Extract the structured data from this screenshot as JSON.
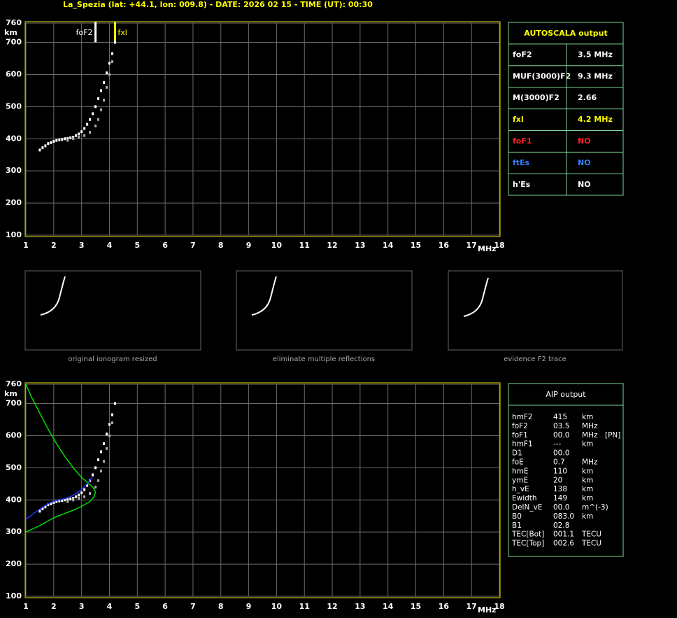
{
  "header": {
    "title": "La_Spezia (lat: +44.1, lon: 009.8) - DATE: 2026 02 15 - TIME (UT): 00:30"
  },
  "chart_data": [
    {
      "type": "scatter",
      "xlabel": "MHz",
      "ylabel": "km",
      "xlim": [
        1,
        18
      ],
      "ylim": [
        100,
        760
      ],
      "xticks": [
        1,
        2,
        3,
        4,
        5,
        6,
        7,
        8,
        9,
        10,
        11,
        12,
        13,
        14,
        15,
        16,
        17,
        18
      ],
      "yticks": [
        100,
        200,
        300,
        400,
        500,
        600,
        700,
        760
      ],
      "grid": true,
      "annotations": [
        {
          "text": "foF2",
          "x": 3.5,
          "color": "#ffffff"
        },
        {
          "text": "fxl",
          "x": 4.2,
          "color": "#ffff00"
        }
      ],
      "series": [
        {
          "type": "scatter",
          "color": "#ffffff",
          "x": [
            1.5,
            1.6,
            1.7,
            1.8,
            1.9,
            2.0,
            2.1,
            2.2,
            2.3,
            2.4,
            2.5,
            2.6,
            2.7,
            2.8,
            2.9,
            3.0,
            3.1,
            3.2,
            3.3,
            3.4,
            3.5,
            3.6,
            3.7,
            3.8,
            3.9,
            4.0,
            4.1,
            4.2
          ],
          "values": [
            365,
            372,
            378,
            385,
            388,
            392,
            395,
            397,
            398,
            400,
            401,
            403,
            405,
            410,
            415,
            422,
            432,
            445,
            460,
            478,
            500,
            525,
            550,
            575,
            605,
            635,
            665,
            700
          ]
        },
        {
          "type": "scatter",
          "color": "#aaaaaa",
          "x": [
            2.5,
            2.7,
            2.9,
            3.1,
            3.3,
            3.5,
            3.6,
            3.7,
            3.8,
            3.9,
            4.0,
            4.1
          ],
          "values": [
            395,
            400,
            405,
            410,
            420,
            440,
            460,
            490,
            520,
            560,
            600,
            640
          ]
        }
      ]
    },
    {
      "type": "scatter",
      "xlabel": "MHz",
      "ylabel": "km",
      "xlim": [
        1,
        18
      ],
      "ylim": [
        100,
        760
      ],
      "xticks": [
        1,
        2,
        3,
        4,
        5,
        6,
        7,
        8,
        9,
        10,
        11,
        12,
        13,
        14,
        15,
        16,
        17,
        18
      ],
      "yticks": [
        100,
        200,
        300,
        400,
        500,
        600,
        700,
        760
      ],
      "grid": true,
      "series": [
        {
          "type": "scatter",
          "color": "#ffffff",
          "x": [
            1.5,
            1.6,
            1.7,
            1.8,
            1.9,
            2.0,
            2.1,
            2.2,
            2.3,
            2.4,
            2.5,
            2.6,
            2.7,
            2.8,
            2.9,
            3.0,
            3.1,
            3.2,
            3.3,
            3.4,
            3.5,
            3.6,
            3.7,
            3.8,
            3.9,
            4.0,
            4.1,
            4.2
          ],
          "values": [
            365,
            372,
            378,
            385,
            388,
            392,
            395,
            397,
            398,
            400,
            401,
            403,
            405,
            410,
            415,
            422,
            432,
            445,
            460,
            478,
            500,
            525,
            550,
            575,
            605,
            635,
            665,
            700
          ]
        },
        {
          "type": "scatter",
          "color": "#aaaaaa",
          "x": [
            2.5,
            2.7,
            2.9,
            3.1,
            3.3,
            3.5,
            3.6,
            3.7,
            3.8,
            3.9,
            4.0,
            4.1
          ],
          "values": [
            395,
            400,
            405,
            410,
            420,
            440,
            460,
            490,
            520,
            560,
            600,
            640
          ]
        },
        {
          "type": "line",
          "color": "#00dd00",
          "x": [
            1.0,
            1.2,
            1.5,
            1.8,
            2.1,
            2.4,
            2.7,
            3.0,
            3.2,
            3.4,
            3.5,
            3.45,
            3.3,
            3.0,
            2.7,
            2.4,
            2.1,
            1.8,
            1.5,
            1.2,
            1.0
          ],
          "values": [
            760,
            720,
            670,
            620,
            575,
            535,
            500,
            470,
            455,
            440,
            425,
            410,
            395,
            380,
            368,
            358,
            348,
            335,
            320,
            308,
            300
          ]
        },
        {
          "type": "line",
          "color": "#2233ff",
          "x": [
            1.0,
            1.2,
            1.4,
            1.6,
            1.8,
            2.0,
            2.2,
            2.4,
            2.6,
            2.8,
            3.0,
            3.2,
            3.4
          ],
          "values": [
            340,
            352,
            365,
            378,
            388,
            396,
            400,
            404,
            410,
            420,
            432,
            450,
            472
          ]
        }
      ]
    }
  ],
  "thumbnails": {
    "captions": [
      "original ionogram resized",
      "eliminate multiple reflections",
      "evidence F2 trace"
    ]
  },
  "autoscala": {
    "title": "AUTOSCALA output",
    "rows": [
      {
        "label": "foF2",
        "value": "3.5 MHz",
        "color": "#ffffff"
      },
      {
        "label": "MUF(3000)F2",
        "value": "9.3 MHz",
        "color": "#ffffff"
      },
      {
        "label": "M(3000)F2",
        "value": "2.66",
        "color": "#ffffff"
      },
      {
        "label": "fxI",
        "value": "4.2 MHz",
        "color": "#ffff00"
      },
      {
        "label": "foF1",
        "value": "NO",
        "color": "#ff2020"
      },
      {
        "label": "ftEs",
        "value": "NO",
        "color": "#3080ff"
      },
      {
        "label": "h'Es",
        "value": "NO",
        "color": "#ffffff"
      }
    ]
  },
  "aip": {
    "title": "AIP output",
    "rows": [
      [
        "hmF2",
        "415",
        "km"
      ],
      [
        "foF2",
        "03.5",
        "MHz"
      ],
      [
        "foF1",
        "00.0",
        "MHz",
        "[PN]"
      ],
      [
        "hmF1",
        "---",
        "km"
      ],
      [
        "D1",
        "00.0"
      ],
      [
        "foE",
        "0.7",
        "MHz"
      ],
      [
        "hmE",
        "110",
        "km"
      ],
      [
        "ymE",
        "20",
        "km"
      ],
      [
        "h_vE",
        "138",
        "km"
      ],
      [
        "Ewidth",
        "149",
        "km"
      ],
      [
        "DelN_vE",
        "00.0",
        "m^(-3)"
      ],
      [
        "B0",
        "083.0",
        "km"
      ],
      [
        "B1",
        "02.8"
      ],
      [
        "TEC[Bot]",
        "001.1",
        "TECU"
      ],
      [
        "TEC[Top]",
        "002.6",
        "TECU"
      ]
    ]
  }
}
